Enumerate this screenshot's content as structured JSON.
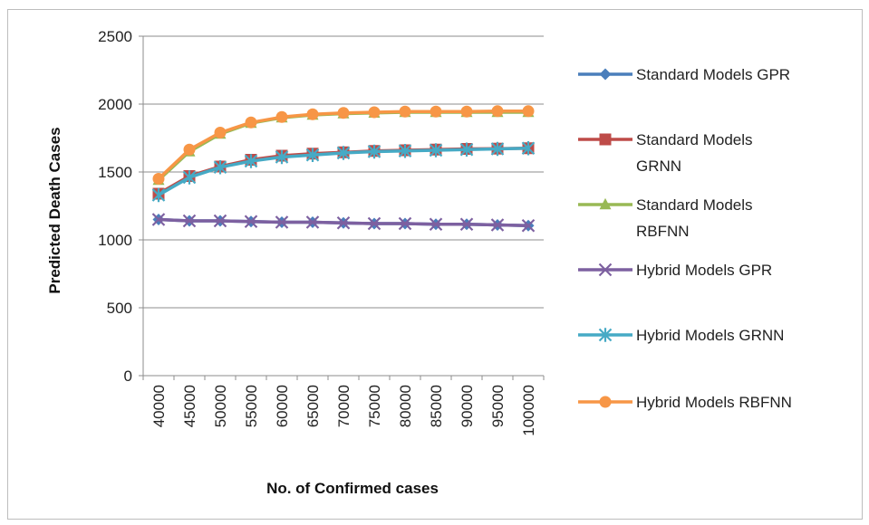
{
  "chart_data": {
    "type": "line",
    "title": "",
    "xlabel": "No. of Confirmed cases",
    "ylabel": "Predicted Death Cases",
    "ylim": [
      0,
      2500
    ],
    "yticks": [
      "0",
      "500",
      "1000",
      "1500",
      "2000",
      "2500"
    ],
    "grid": "horizontal",
    "legend_position": "right",
    "categories": [
      "40000",
      "45000",
      "50000",
      "55000",
      "60000",
      "65000",
      "70000",
      "75000",
      "80000",
      "85000",
      "90000",
      "95000",
      "100000"
    ],
    "series": [
      {
        "name": "Standard Models GPR",
        "legend_lines": [
          "Standard Models GPR"
        ],
        "color": "#4a7ebb",
        "marker": "diamond",
        "values": [
          1150,
          1140,
          1140,
          1135,
          1130,
          1130,
          1125,
          1120,
          1120,
          1115,
          1115,
          1110,
          1105
        ]
      },
      {
        "name": "Standard Models GRNN",
        "legend_lines": [
          "Standard Models",
          "GRNN"
        ],
        "color": "#be4b48",
        "marker": "square",
        "values": [
          1340,
          1470,
          1540,
          1590,
          1620,
          1635,
          1645,
          1655,
          1660,
          1665,
          1670,
          1672,
          1675
        ]
      },
      {
        "name": "Standard Models RBFNN",
        "legend_lines": [
          "Standard Models",
          "RBFNN"
        ],
        "color": "#98b954",
        "marker": "triangle",
        "values": [
          1440,
          1650,
          1780,
          1860,
          1900,
          1920,
          1930,
          1935,
          1940,
          1940,
          1940,
          1940,
          1940
        ]
      },
      {
        "name": "Hybrid Models GPR",
        "legend_lines": [
          "Hybrid Models GPR"
        ],
        "color": "#7d60a0",
        "marker": "x",
        "values": [
          1150,
          1140,
          1140,
          1135,
          1130,
          1130,
          1125,
          1120,
          1120,
          1115,
          1115,
          1110,
          1105
        ]
      },
      {
        "name": "Hybrid Models GRNN",
        "legend_lines": [
          "Hybrid Models GRNN"
        ],
        "color": "#46aac5",
        "marker": "star",
        "values": [
          1330,
          1460,
          1535,
          1580,
          1610,
          1625,
          1640,
          1650,
          1655,
          1660,
          1665,
          1670,
          1675
        ]
      },
      {
        "name": "Hybrid Models RBFNN",
        "legend_lines": [
          "Hybrid Models RBFNN"
        ],
        "color": "#f79646",
        "marker": "circle",
        "values": [
          1450,
          1665,
          1790,
          1865,
          1905,
          1925,
          1935,
          1940,
          1945,
          1945,
          1945,
          1948,
          1948
        ]
      }
    ]
  }
}
